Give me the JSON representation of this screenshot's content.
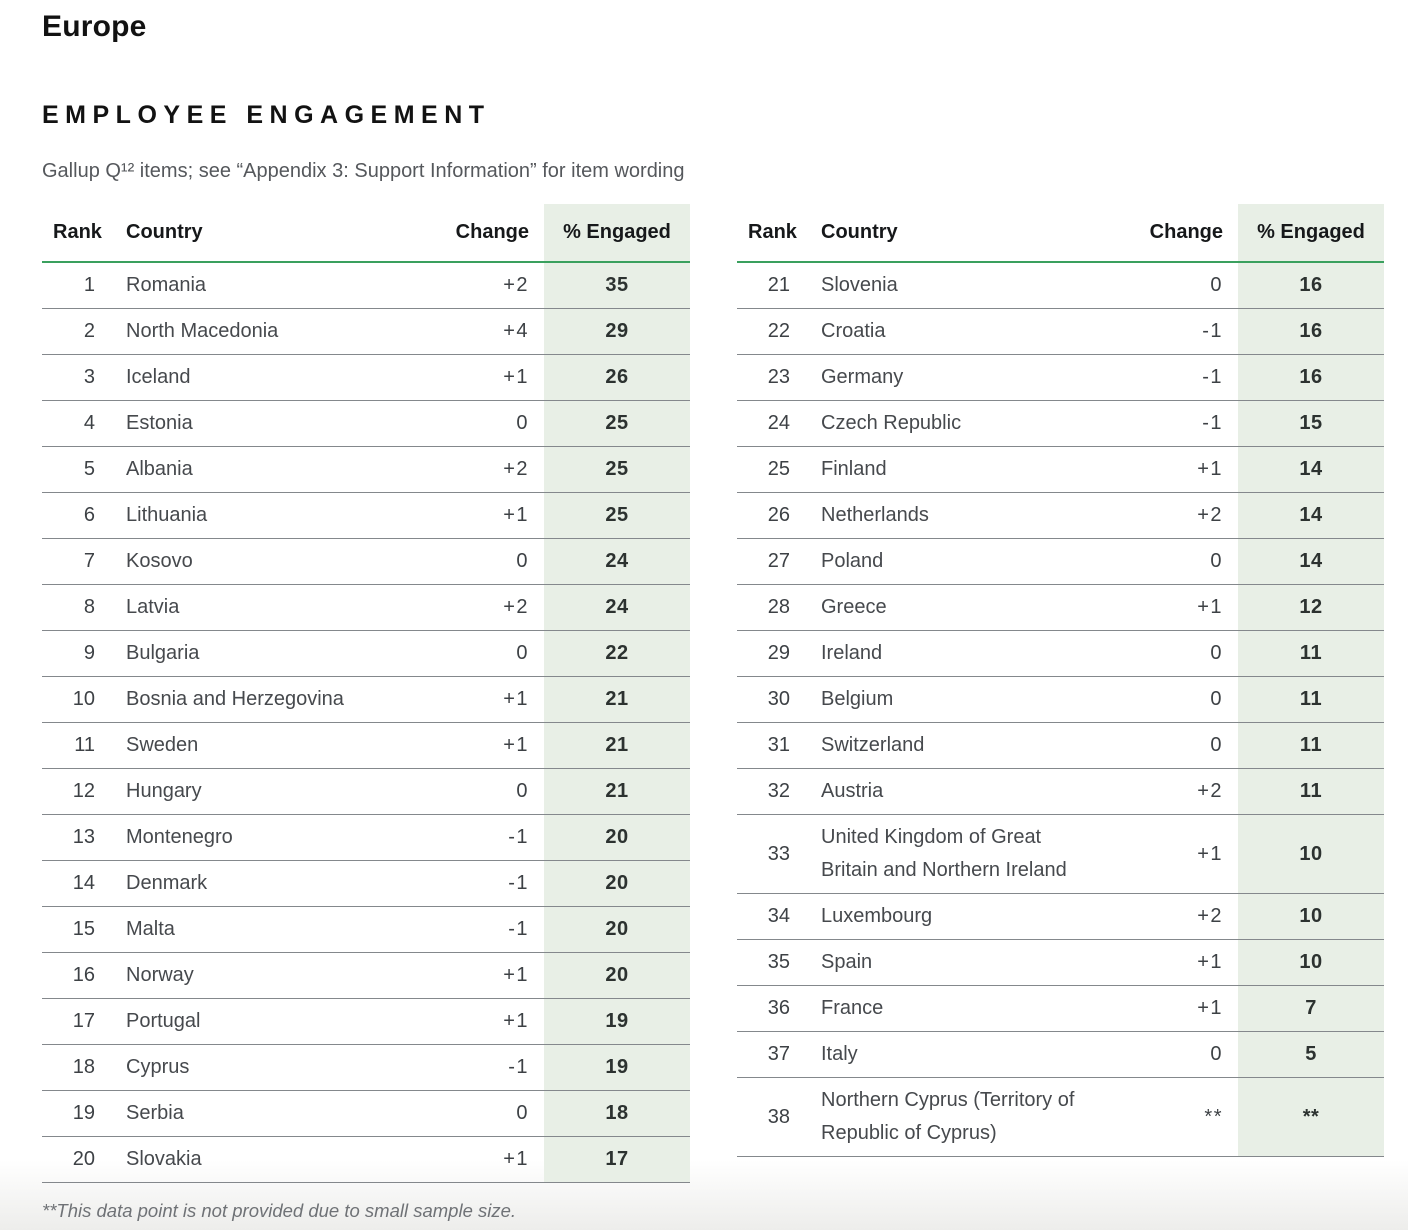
{
  "page": {
    "region_title": "Europe",
    "section_title": "EMPLOYEE ENGAGEMENT",
    "subtitle": "Gallup Q¹² items; see “Appendix 3: Support Information” for item wording",
    "footnote": "**This data point is not provided due to small sample size."
  },
  "colors": {
    "accent_green": "#3aa05e",
    "engaged_column_bg": "#e8efe6",
    "row_border": "#84888c",
    "heading_text": "#121212",
    "body_text": "#46494d",
    "muted_text": "#55585c"
  },
  "tables": [
    {
      "id": "left",
      "headers": {
        "rank": "Rank",
        "country": "Country",
        "change": "Change",
        "engaged": "% Engaged"
      },
      "rows": [
        {
          "rank": "1",
          "country": "Romania",
          "change": "+2",
          "engaged": "35"
        },
        {
          "rank": "2",
          "country": "North Macedonia",
          "change": "+4",
          "engaged": "29"
        },
        {
          "rank": "3",
          "country": "Iceland",
          "change": "+1",
          "engaged": "26"
        },
        {
          "rank": "4",
          "country": "Estonia",
          "change": "0",
          "engaged": "25"
        },
        {
          "rank": "5",
          "country": "Albania",
          "change": "+2",
          "engaged": "25"
        },
        {
          "rank": "6",
          "country": "Lithuania",
          "change": "+1",
          "engaged": "25"
        },
        {
          "rank": "7",
          "country": "Kosovo",
          "change": "0",
          "engaged": "24"
        },
        {
          "rank": "8",
          "country": "Latvia",
          "change": "+2",
          "engaged": "24"
        },
        {
          "rank": "9",
          "country": "Bulgaria",
          "change": "0",
          "engaged": "22"
        },
        {
          "rank": "10",
          "country": "Bosnia and Herzegovina",
          "change": "+1",
          "engaged": "21"
        },
        {
          "rank": "11",
          "country": "Sweden",
          "change": "+1",
          "engaged": "21"
        },
        {
          "rank": "12",
          "country": "Hungary",
          "change": "0",
          "engaged": "21"
        },
        {
          "rank": "13",
          "country": "Montenegro",
          "change": "-1",
          "engaged": "20"
        },
        {
          "rank": "14",
          "country": "Denmark",
          "change": "-1",
          "engaged": "20"
        },
        {
          "rank": "15",
          "country": "Malta",
          "change": "-1",
          "engaged": "20"
        },
        {
          "rank": "16",
          "country": "Norway",
          "change": "+1",
          "engaged": "20"
        },
        {
          "rank": "17",
          "country": "Portugal",
          "change": "+1",
          "engaged": "19"
        },
        {
          "rank": "18",
          "country": "Cyprus",
          "change": "-1",
          "engaged": "19"
        },
        {
          "rank": "19",
          "country": "Serbia",
          "change": "0",
          "engaged": "18"
        },
        {
          "rank": "20",
          "country": "Slovakia",
          "change": "+1",
          "engaged": "17"
        }
      ]
    },
    {
      "id": "right",
      "headers": {
        "rank": "Rank",
        "country": "Country",
        "change": "Change",
        "engaged": "% Engaged"
      },
      "rows": [
        {
          "rank": "21",
          "country": "Slovenia",
          "change": "0",
          "engaged": "16"
        },
        {
          "rank": "22",
          "country": "Croatia",
          "change": "-1",
          "engaged": "16"
        },
        {
          "rank": "23",
          "country": "Germany",
          "change": "-1",
          "engaged": "16"
        },
        {
          "rank": "24",
          "country": "Czech Republic",
          "change": "-1",
          "engaged": "15"
        },
        {
          "rank": "25",
          "country": "Finland",
          "change": "+1",
          "engaged": "14"
        },
        {
          "rank": "26",
          "country": "Netherlands",
          "change": "+2",
          "engaged": "14"
        },
        {
          "rank": "27",
          "country": "Poland",
          "change": "0",
          "engaged": "14"
        },
        {
          "rank": "28",
          "country": "Greece",
          "change": "+1",
          "engaged": "12"
        },
        {
          "rank": "29",
          "country": "Ireland",
          "change": "0",
          "engaged": "11"
        },
        {
          "rank": "30",
          "country": "Belgium",
          "change": "0",
          "engaged": "11"
        },
        {
          "rank": "31",
          "country": "Switzerland",
          "change": "0",
          "engaged": "11"
        },
        {
          "rank": "32",
          "country": "Austria",
          "change": "+2",
          "engaged": "11"
        },
        {
          "rank": "33",
          "country": "United Kingdom of Great Britain and Northern Ireland",
          "change": "+1",
          "engaged": "10"
        },
        {
          "rank": "34",
          "country": "Luxembourg",
          "change": "+2",
          "engaged": "10"
        },
        {
          "rank": "35",
          "country": "Spain",
          "change": "+1",
          "engaged": "10"
        },
        {
          "rank": "36",
          "country": "France",
          "change": "+1",
          "engaged": "7"
        },
        {
          "rank": "37",
          "country": "Italy",
          "change": "0",
          "engaged": "5"
        },
        {
          "rank": "38",
          "country": "Northern Cyprus (Territory of Republic of Cyprus)",
          "change": "**",
          "engaged": "**"
        }
      ]
    }
  ]
}
